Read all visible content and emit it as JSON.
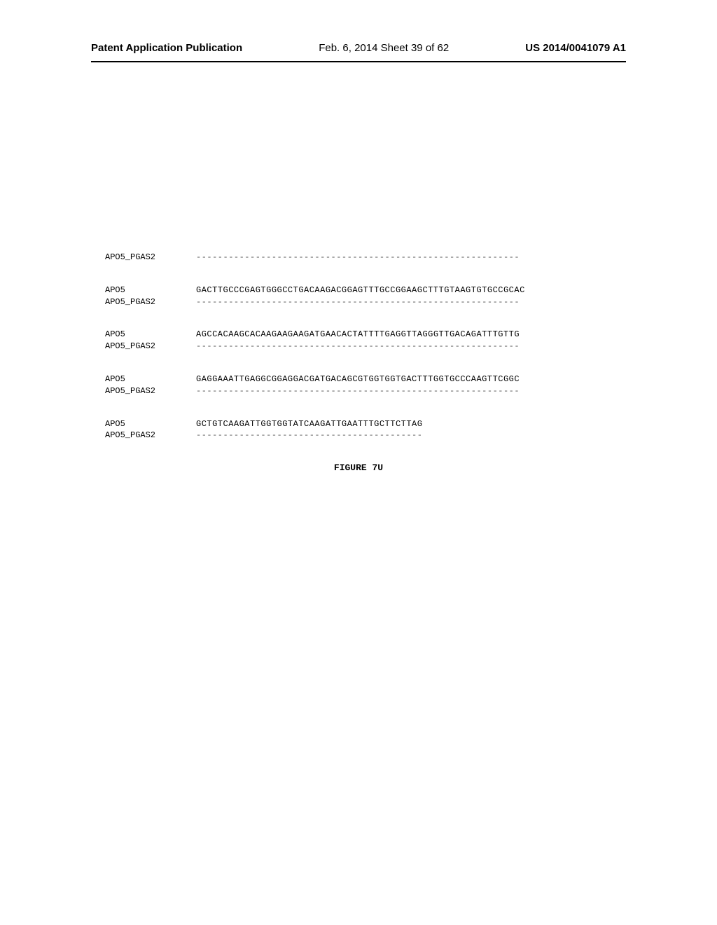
{
  "header": {
    "left": "Patent Application Publication",
    "center": "Feb. 6, 2014   Sheet 39 of 62",
    "right": "US 2014/0041079 A1"
  },
  "alignment": {
    "blocks": [
      {
        "rows": [
          {
            "label": "APO5_PGAS2",
            "sequence": "------------------------------------------------------------",
            "is_dashes": true
          }
        ]
      },
      {
        "rows": [
          {
            "label": "APO5",
            "sequence": "GACTTGCCCGAGTGGGCCTGACAAGACGGAGTTTGCCGGAAGCTTTGTAAGTGTGCCGCAC",
            "is_dashes": false
          },
          {
            "label": "APO5_PGAS2",
            "sequence": "------------------------------------------------------------",
            "is_dashes": true
          }
        ]
      },
      {
        "rows": [
          {
            "label": "APO5",
            "sequence": "AGCCACAAGCACAAGAAGAAGATGAACACTATTTTGAGGTTAGGGTTGACAGATTTGTTG",
            "is_dashes": false
          },
          {
            "label": "APO5_PGAS2",
            "sequence": "------------------------------------------------------------",
            "is_dashes": true
          }
        ]
      },
      {
        "rows": [
          {
            "label": "APO5",
            "sequence": "GAGGAAATTGAGGCGGAGGACGATGACAGCGTGGTGGTGACTTTGGTGCCCAAGTTCGGC",
            "is_dashes": false
          },
          {
            "label": "APO5_PGAS2",
            "sequence": "------------------------------------------------------------",
            "is_dashes": true
          }
        ]
      },
      {
        "rows": [
          {
            "label": "APO5",
            "sequence": "GCTGTCAAGATTGGTGGTATCAAGATTGAATTTGCTTCTTAG",
            "is_dashes": false
          },
          {
            "label": "APO5_PGAS2",
            "sequence": "------------------------------------------",
            "is_dashes": true
          }
        ]
      }
    ]
  },
  "figure_title": "FIGURE 7U",
  "colors": {
    "background": "#ffffff",
    "text": "#000000",
    "dashes": "#555555",
    "divider": "#000000"
  },
  "typography": {
    "header_fontsize": 15,
    "sequence_fontsize": 12,
    "title_fontsize": 13
  }
}
